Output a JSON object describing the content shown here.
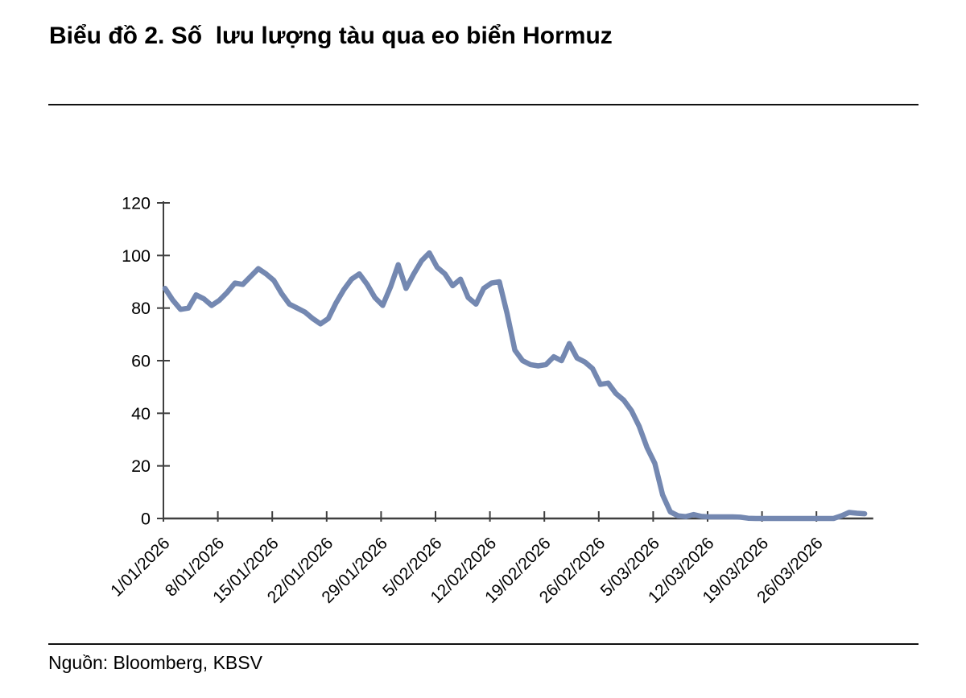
{
  "page": {
    "title": "Biểu đồ 2. Số  lưu lượng tàu qua eo biển Hormuz",
    "source": "Nguồn: Bloomberg, KBSV"
  },
  "chart_data": {
    "type": "line",
    "title": "Biểu đồ 2. Số  lưu lượng tàu qua eo biển Hormuz",
    "xlabel": "",
    "ylabel": "",
    "ylim": [
      0,
      120
    ],
    "y_ticks": [
      0,
      20,
      40,
      60,
      80,
      100,
      120
    ],
    "x_tick_labels": [
      "1/01/2026",
      "8/01/2026",
      "15/01/2026",
      "22/01/2026",
      "29/01/2026",
      "5/02/2026",
      "12/02/2026",
      "19/02/2026",
      "26/02/2026",
      "5/03/2026",
      "12/03/2026",
      "19/03/2026",
      "26/03/2026"
    ],
    "x_note": "daily values starting 1/01/2026, one point per day, weekly tick marks",
    "grid": false,
    "legend": "none",
    "line_color": "#7488b1",
    "axis_color": "#3f3f3f",
    "series": [
      {
        "name": "Số lưu lượng tàu qua eo biển Hormuz",
        "color": "#7488b1",
        "values": [
          87.5,
          83,
          79.5,
          80,
          85,
          83.5,
          81,
          83,
          86,
          89.5,
          89,
          92,
          95,
          93,
          90.5,
          85.5,
          81.5,
          80,
          78.5,
          76,
          74,
          76,
          82,
          87,
          91,
          93,
          89,
          84,
          81,
          88,
          96.5,
          87.5,
          93,
          98,
          101,
          95.5,
          93,
          88.5,
          91,
          84,
          81.5,
          87.5,
          89.5,
          90,
          78,
          64,
          60,
          58.5,
          58,
          58.5,
          61.5,
          60,
          66.5,
          61,
          59.5,
          57,
          51,
          51.5,
          47.5,
          45,
          41,
          35,
          27,
          21,
          9,
          2.5,
          1,
          0.7,
          1.5,
          0.8,
          0.6,
          0.6,
          0.6,
          0.6,
          0.5,
          0.1,
          0,
          0,
          0,
          0,
          0,
          0,
          0,
          0,
          0,
          0,
          0,
          1,
          2.3,
          2,
          1.8
        ]
      }
    ],
    "source": "Nguồn: Bloomberg, KBSV"
  }
}
